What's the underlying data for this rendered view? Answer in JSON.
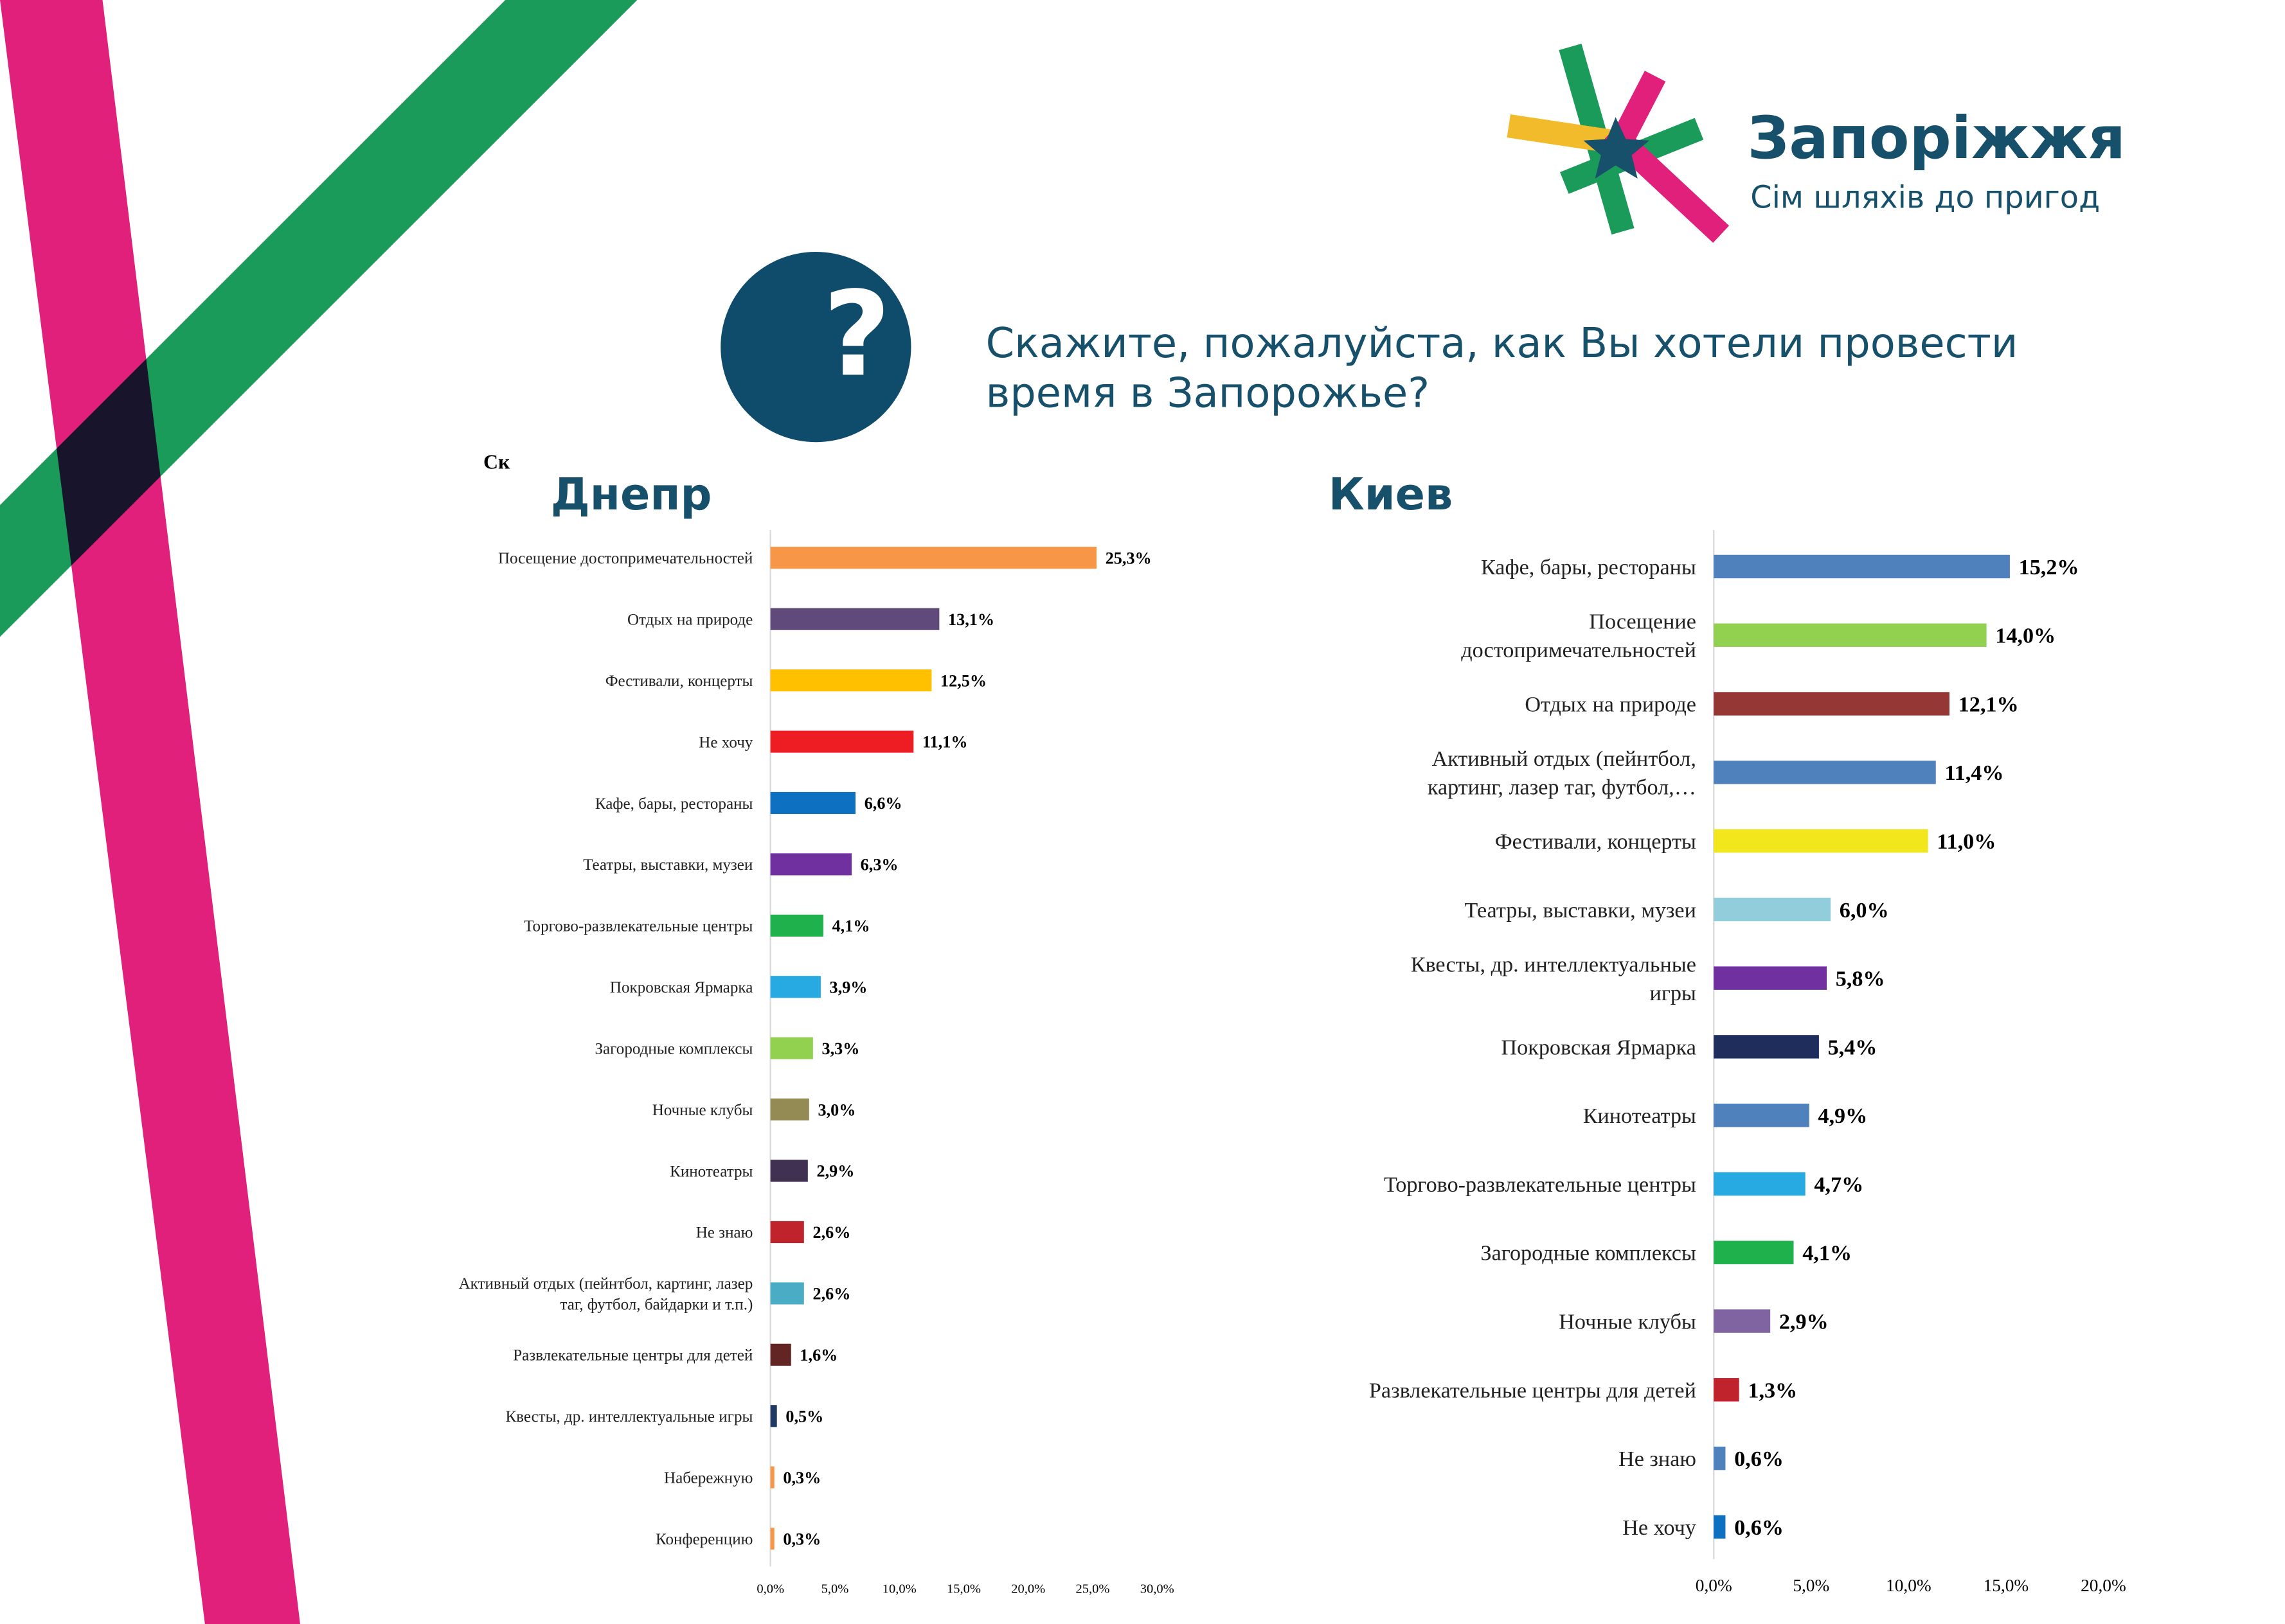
{
  "header": {
    "title": "Запоріжжя",
    "subtitle": "Сім шляхів до пригод"
  },
  "question_lines": [
    "Скажите, пожалуйста, как Вы хотели провести",
    "время в Запорожье?"
  ],
  "stray_text": "Ск",
  "chart_data": [
    {
      "type": "hbar",
      "title": "Днепр",
      "categories": [
        "Посещение достопримечательностей",
        "Отдых на природе",
        "Фестивали, концерты",
        "Не хочу",
        "Кафе, бары, рестораны",
        "Театры, выставки, музеи",
        "Торгово-развлекательные центры",
        "Покровская Ярмарка",
        "Загородные комплексы",
        "Ночные клубы",
        "Кинотеатры",
        "Не знаю",
        "Активный отдых (пейнтбол, картинг, лазер\nтаг, футбол, байдарки и т.п.)",
        "Развлекательные центры для детей",
        "Квесты, др. интеллектуальные игры",
        "Набережную",
        "Конференцию"
      ],
      "values": [
        25.3,
        13.1,
        12.5,
        11.1,
        6.6,
        6.3,
        4.1,
        3.9,
        3.3,
        3.0,
        2.9,
        2.6,
        2.6,
        1.6,
        0.5,
        0.3,
        0.3
      ],
      "value_labels": [
        "25,3%",
        "13,1%",
        "12,5%",
        "11,1%",
        "6,6%",
        "6,3%",
        "4,1%",
        "3,9%",
        "3,3%",
        "3,0%",
        "2,9%",
        "2,6%",
        "2,6%",
        "1,6%",
        "0,5%",
        "0,3%",
        "0,3%"
      ],
      "colors": [
        "#f79646",
        "#604a7b",
        "#ffc000",
        "#ee1d23",
        "#0e70c0",
        "#7030a0",
        "#1fb14c",
        "#27aae1",
        "#92d050",
        "#948a54",
        "#403152",
        "#c0232c",
        "#4bacc6",
        "#632523",
        "#1f3864",
        "#f79646",
        "#f79646"
      ],
      "xlim": [
        0,
        30
      ],
      "xticks": [
        {
          "value": 0,
          "label": "0,0%"
        },
        {
          "value": 5,
          "label": "5,0%"
        },
        {
          "value": 10,
          "label": "10,0%"
        },
        {
          "value": 15,
          "label": "15,0%"
        },
        {
          "value": 20,
          "label": "20,0%"
        },
        {
          "value": 25,
          "label": "25,0%"
        },
        {
          "value": 30,
          "label": "30,0%"
        }
      ]
    },
    {
      "type": "hbar",
      "title": "Киев",
      "categories": [
        "Кафе, бары, рестораны",
        "Посещение\nдостопримечательностей",
        "Отдых на природе",
        "Активный отдых (пейнтбол,\nкартинг, лазер таг, футбол,…",
        "Фестивали, концерты",
        "Театры, выставки, музеи",
        "Квесты, др. интеллектуальные\nигры",
        "Покровская Ярмарка",
        "Кинотеатры",
        "Торгово-развлекательные центры",
        "Загородные комплексы",
        "Ночные клубы",
        "Развлекательные центры для детей",
        "Не знаю",
        "Не хочу"
      ],
      "values": [
        15.2,
        14.0,
        12.1,
        11.4,
        11.0,
        6.0,
        5.8,
        5.4,
        4.9,
        4.7,
        4.1,
        2.9,
        1.3,
        0.6,
        0.6
      ],
      "value_labels": [
        "15,2%",
        "14,0%",
        "12,1%",
        "11,4%",
        "11,0%",
        "6,0%",
        "5,8%",
        "5,4%",
        "4,9%",
        "4,7%",
        "4,1%",
        "2,9%",
        "1,3%",
        "0,6%",
        "0,6%"
      ],
      "colors": [
        "#4f81bd",
        "#92d050",
        "#953735",
        "#4f81bd",
        "#f2e61c",
        "#92cddc",
        "#7030a0",
        "#1f2d5c",
        "#4f81bd",
        "#27aae1",
        "#1fb14c",
        "#8064a2",
        "#c0232c",
        "#4f81bd",
        "#0e70c0"
      ],
      "xlim": [
        0,
        20
      ],
      "xticks": [
        {
          "value": 0,
          "label": "0,0%"
        },
        {
          "value": 5,
          "label": "5,0%"
        },
        {
          "value": 10,
          "label": "10,0%"
        },
        {
          "value": 15,
          "label": "15,0%"
        },
        {
          "value": 20,
          "label": "20,0%"
        }
      ]
    }
  ]
}
